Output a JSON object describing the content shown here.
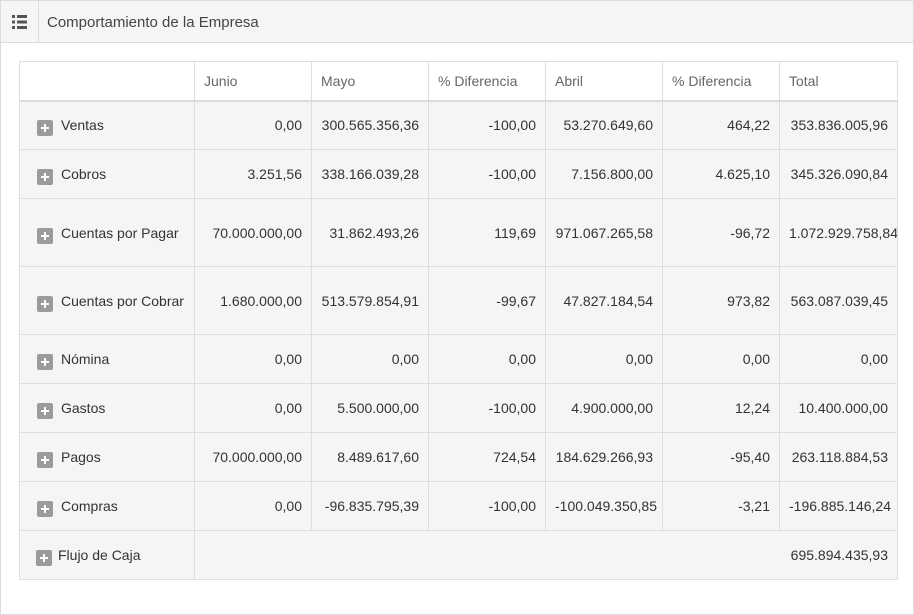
{
  "header": {
    "title": "Comportamiento de la Empresa",
    "menu_icon": "list-icon"
  },
  "table": {
    "columns": [
      "",
      "Junio",
      "Mayo",
      "% Diferencia",
      "Abril",
      "% Diferencia",
      "Total"
    ],
    "rows": [
      {
        "label": "Ventas",
        "values": [
          "0,00",
          "300.565.356,36",
          "-100,00",
          "53.270.649,60",
          "464,22",
          "353.836.005,96"
        ]
      },
      {
        "label": "Cobros",
        "values": [
          "3.251,56",
          "338.166.039,28",
          "-100,00",
          "7.156.800,00",
          "4.625,10",
          "345.326.090,84"
        ]
      },
      {
        "label": "Cuentas por Pagar",
        "values": [
          "70.000.000,00",
          "31.862.493,26",
          "119,69",
          "971.067.265,58",
          "-96,72",
          "1.072.929.758,84"
        ]
      },
      {
        "label": "Cuentas por Cobrar",
        "values": [
          "1.680.000,00",
          "513.579.854,91",
          "-99,67",
          "47.827.184,54",
          "973,82",
          "563.087.039,45"
        ]
      },
      {
        "label": "Nómina",
        "values": [
          "0,00",
          "0,00",
          "0,00",
          "0,00",
          "0,00",
          "0,00"
        ]
      },
      {
        "label": "Gastos",
        "values": [
          "0,00",
          "5.500.000,00",
          "-100,00",
          "4.900.000,00",
          "12,24",
          "10.400.000,00"
        ]
      },
      {
        "label": "Pagos",
        "values": [
          "70.000.000,00",
          "8.489.617,60",
          "724,54",
          "184.629.266,93",
          "-95,40",
          "263.118.884,53"
        ]
      },
      {
        "label": "Compras",
        "values": [
          "0,00",
          "-96.835.795,39",
          "-100,00",
          "-100.049.350,85",
          "-3,21",
          "-196.885.146,24"
        ]
      }
    ],
    "total_row": {
      "label": "Flujo de Caja",
      "value": "695.894.435,93"
    }
  }
}
